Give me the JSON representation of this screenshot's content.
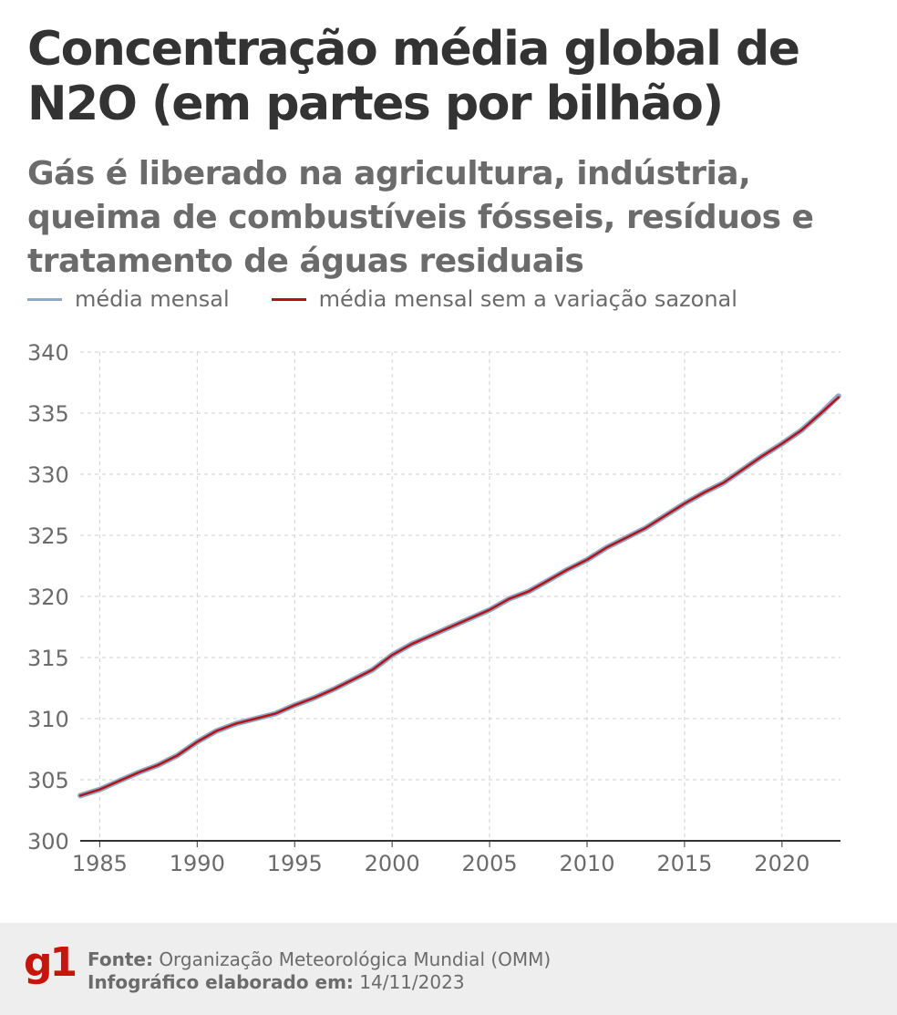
{
  "header": {
    "title": "Concentração média global de N2O (em partes por bilhão)",
    "subtitle": "Gás é liberado na agricultura, indústria, queima de combustíveis fósseis, resíduos e tratamento de águas residuais"
  },
  "legend": [
    {
      "label": "média mensal",
      "color": "#8fa8c4"
    },
    {
      "label": "média mensal sem a variação sazonal",
      "color": "#b3141a"
    }
  ],
  "chart_data": {
    "type": "line",
    "title": "Concentração média global de N2O (em partes por bilhão)",
    "xlabel": "",
    "ylabel": "",
    "xlim": [
      1984,
      2023
    ],
    "ylim": [
      300,
      340
    ],
    "x_ticks": [
      "1985",
      "1990",
      "1995",
      "2000",
      "2005",
      "2010",
      "2015",
      "2020"
    ],
    "y_ticks": [
      "300",
      "305",
      "310",
      "315",
      "320",
      "325",
      "330",
      "335",
      "340"
    ],
    "grid": true,
    "legend_position": "top-left",
    "series": [
      {
        "name": "média mensal sem a variação sazonal",
        "color": "#b3141a",
        "x": [
          1984.0,
          1985.0,
          1986.0,
          1987.0,
          1988.0,
          1989.0,
          1990.0,
          1991.0,
          1992.0,
          1993.0,
          1994.0,
          1995.0,
          1996.0,
          1997.0,
          1998.0,
          1999.0,
          2000.0,
          2001.0,
          2002.0,
          2003.0,
          2004.0,
          2005.0,
          2006.0,
          2007.0,
          2008.0,
          2009.0,
          2010.0,
          2011.0,
          2012.0,
          2013.0,
          2014.0,
          2015.0,
          2016.0,
          2017.0,
          2018.0,
          2019.0,
          2020.0,
          2021.0,
          2022.0,
          2022.9
        ],
        "y": [
          303.7,
          304.2,
          304.9,
          305.6,
          306.2,
          307.0,
          308.1,
          309.0,
          309.6,
          310.0,
          310.4,
          311.1,
          311.7,
          312.4,
          313.2,
          314.0,
          315.2,
          316.1,
          316.8,
          317.5,
          318.2,
          318.9,
          319.8,
          320.4,
          321.3,
          322.2,
          323.0,
          324.0,
          324.8,
          325.6,
          326.6,
          327.6,
          328.5,
          329.3,
          330.4,
          331.5,
          332.5,
          333.6,
          335.0,
          336.3
        ]
      },
      {
        "name": "média mensal",
        "color": "#8fa8c4",
        "x": [
          1984.0,
          1985.0,
          1986.0,
          1987.0,
          1988.0,
          1989.0,
          1990.0,
          1991.0,
          1992.0,
          1993.0,
          1994.0,
          1995.0,
          1996.0,
          1997.0,
          1998.0,
          1999.0,
          2000.0,
          2001.0,
          2002.0,
          2003.0,
          2004.0,
          2005.0,
          2006.0,
          2007.0,
          2008.0,
          2009.0,
          2010.0,
          2011.0,
          2012.0,
          2013.0,
          2014.0,
          2015.0,
          2016.0,
          2017.0,
          2018.0,
          2019.0,
          2020.0,
          2021.0,
          2022.0,
          2022.9
        ],
        "y": [
          303.7,
          304.2,
          304.9,
          305.6,
          306.2,
          307.0,
          308.1,
          309.0,
          309.6,
          310.0,
          310.4,
          311.1,
          311.7,
          312.4,
          313.2,
          314.0,
          315.2,
          316.1,
          316.8,
          317.5,
          318.2,
          318.9,
          319.8,
          320.4,
          321.3,
          322.2,
          323.0,
          324.0,
          324.8,
          325.6,
          326.6,
          327.6,
          328.5,
          329.3,
          330.4,
          331.5,
          332.5,
          333.6,
          335.0,
          336.4
        ]
      }
    ]
  },
  "footer": {
    "logo": "g1",
    "source_label": "Fonte:",
    "source_value": "Organização Meteorológica Mundial (OMM)",
    "date_label": "Infográfico elaborado em:",
    "date_value": "14/11/2023"
  }
}
